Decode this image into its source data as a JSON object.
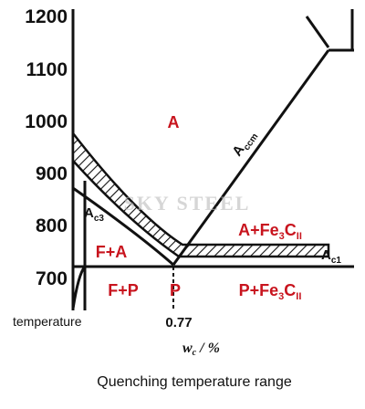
{
  "y_axis": {
    "ticks": [
      "1200",
      "1100",
      "1000",
      "900",
      "800",
      "700"
    ]
  },
  "x_axis": {
    "tick": "0.77",
    "label": {
      "main": "w",
      "sub": "c",
      "unit": " / %"
    }
  },
  "axis_note": "temperature",
  "regions": {
    "a": "A",
    "a_fe3c": [
      "A+Fe",
      "3",
      "C",
      "II"
    ],
    "f_a": "F+A",
    "f_p": "F+P",
    "p": "P",
    "p_fe3c": [
      "P+Fe",
      "3",
      "C",
      "II"
    ]
  },
  "lines": {
    "accm": [
      "A",
      "ccm"
    ],
    "ac3": [
      "A",
      "c3"
    ],
    "ac1": [
      "A",
      "c1"
    ]
  },
  "watermark": "SKY STEEL",
  "caption": "Quenching temperature range"
}
